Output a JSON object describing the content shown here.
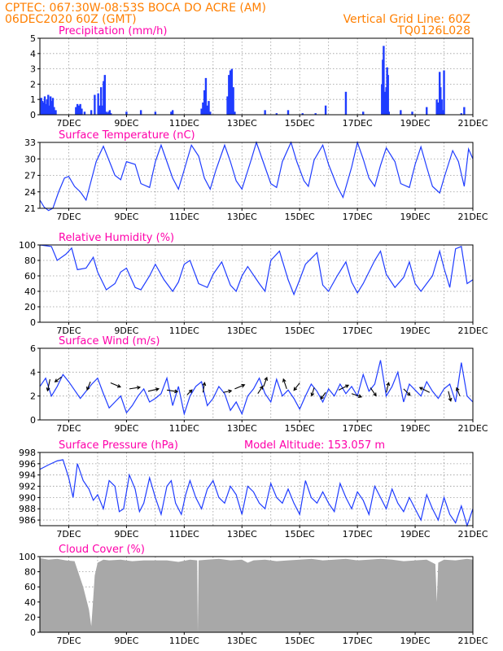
{
  "header": {
    "line1": "CPTEC:   067:30W-08:53S   BOCA DO ACRE (AM)",
    "line2": "06DEC2020 60Z (GMT)",
    "grid_note": "Vertical Grid Line: 60Z",
    "code": "TQ0126L028"
  },
  "colors": {
    "series": "#1f3cff",
    "title": "#ff00aa",
    "header": "#ff7f00",
    "cloud": "#a8a8a8"
  },
  "x_axis": {
    "start_day": 6,
    "end_day": 21,
    "tick_labels": [
      "7DEC",
      "9DEC",
      "11DEC",
      "13DEC",
      "15DEC",
      "17DEC",
      "19DEC",
      "21DEC"
    ],
    "tick_days": [
      7,
      9,
      11,
      13,
      15,
      17,
      19,
      21
    ],
    "grid": true
  },
  "chart_data": [
    {
      "type": "bar",
      "title": "Precipitation (mm/h)",
      "ylim": [
        0,
        5
      ],
      "yticks": [
        0,
        1,
        2,
        3,
        4,
        5
      ],
      "x": [
        6.05,
        6.09,
        6.13,
        6.17,
        6.21,
        6.25,
        6.29,
        6.33,
        6.37,
        6.41,
        6.45,
        6.49,
        6.55,
        7.25,
        7.3,
        7.35,
        7.4,
        7.45,
        7.55,
        7.78,
        7.9,
        8.02,
        8.08,
        8.12,
        8.17,
        8.21,
        8.25,
        8.3,
        8.35,
        8.38,
        8.42,
        8.46,
        9.0,
        9.5,
        10.0,
        10.55,
        10.6,
        11.6,
        11.65,
        11.7,
        11.75,
        11.8,
        11.85,
        11.9,
        12.5,
        12.55,
        12.6,
        12.65,
        12.7,
        12.75,
        13.8,
        14.2,
        14.6,
        15.1,
        15.55,
        15.9,
        16.6,
        17.2,
        17.85,
        17.88,
        17.91,
        17.94,
        17.97,
        18.0,
        18.03,
        18.06,
        18.09,
        18.5,
        18.9,
        19.4,
        19.75,
        19.8,
        19.85,
        19.88,
        19.92,
        19.96,
        20.0,
        20.6,
        20.7
      ],
      "values": [
        1.1,
        0.9,
        0.8,
        1.2,
        0.7,
        1.0,
        1.3,
        0.6,
        1.2,
        0.9,
        1.1,
        0.5,
        0.3,
        0.5,
        0.7,
        0.6,
        0.7,
        0.4,
        0.2,
        0.3,
        1.3,
        1.4,
        0.6,
        1.8,
        0.6,
        2.2,
        2.6,
        0.2,
        0.1,
        0.2,
        0.3,
        0.1,
        0.2,
        0.3,
        0.2,
        0.2,
        0.3,
        0.4,
        0.8,
        1.6,
        2.4,
        0.6,
        0.9,
        0.2,
        1.2,
        2.6,
        2.9,
        3.0,
        1.8,
        0.2,
        0.3,
        0.1,
        0.3,
        0.1,
        0.1,
        0.6,
        1.5,
        0.2,
        2.0,
        3.6,
        4.5,
        1.5,
        0.6,
        1.8,
        3.1,
        2.6,
        0.2,
        0.3,
        0.2,
        0.5,
        1.0,
        0.8,
        2.8,
        1.8,
        1.0,
        0.3,
        2.9,
        0.1,
        0.5
      ]
    },
    {
      "type": "line",
      "title": "Surface Temperature (nC)",
      "ylim": [
        21,
        33
      ],
      "yticks": [
        21,
        24,
        27,
        30,
        33
      ],
      "x": [
        6.0,
        6.15,
        6.3,
        6.45,
        6.65,
        6.85,
        7.0,
        7.2,
        7.4,
        7.6,
        7.8,
        7.95,
        8.2,
        8.45,
        8.6,
        8.8,
        9.0,
        9.3,
        9.5,
        9.8,
        10.0,
        10.2,
        10.4,
        10.6,
        10.8,
        11.0,
        11.25,
        11.5,
        11.7,
        11.9,
        12.1,
        12.4,
        12.6,
        12.8,
        13.0,
        13.3,
        13.5,
        13.8,
        14.0,
        14.2,
        14.4,
        14.7,
        14.9,
        15.15,
        15.3,
        15.5,
        15.8,
        16.0,
        16.3,
        16.5,
        16.8,
        17.0,
        17.2,
        17.4,
        17.6,
        17.8,
        18.0,
        18.3,
        18.5,
        18.8,
        19.0,
        19.2,
        19.4,
        19.6,
        19.85,
        20.0,
        20.3,
        20.5,
        20.7,
        20.85,
        21.0
      ],
      "values": [
        22.5,
        21.2,
        20.6,
        21.0,
        24.0,
        26.5,
        26.8,
        25.0,
        24.0,
        22.5,
        26.5,
        29.5,
        32.3,
        29.0,
        27.0,
        26.2,
        29.5,
        29.0,
        25.5,
        24.8,
        29.5,
        32.5,
        29.5,
        26.5,
        24.5,
        28.0,
        32.5,
        30.5,
        26.5,
        24.5,
        28.0,
        32.5,
        29.5,
        26.0,
        24.5,
        29.5,
        33.0,
        28.5,
        25.5,
        24.8,
        29.5,
        33.0,
        29.5,
        26.0,
        25.0,
        29.8,
        32.5,
        29.0,
        25.0,
        23.0,
        28.5,
        33.0,
        30.0,
        26.5,
        25.0,
        28.8,
        32.0,
        29.5,
        25.5,
        24.8,
        29.0,
        32.2,
        28.5,
        25.0,
        23.8,
        26.5,
        31.5,
        29.5,
        25.0,
        31.8,
        30.0
      ]
    },
    {
      "type": "line",
      "title": "Relative Humidity (%)",
      "ylim": [
        0,
        100
      ],
      "yticks": [
        0,
        20,
        40,
        60,
        80,
        100
      ],
      "x": [
        6.0,
        6.4,
        6.6,
        6.9,
        7.1,
        7.3,
        7.6,
        7.85,
        8.0,
        8.3,
        8.6,
        8.8,
        9.0,
        9.3,
        9.5,
        9.8,
        10.0,
        10.3,
        10.6,
        10.8,
        11.0,
        11.2,
        11.5,
        11.8,
        12.0,
        12.3,
        12.6,
        12.8,
        13.0,
        13.2,
        13.6,
        13.8,
        14.0,
        14.3,
        14.6,
        14.8,
        15.0,
        15.2,
        15.6,
        15.8,
        16.0,
        16.3,
        16.6,
        16.8,
        17.0,
        17.2,
        17.6,
        17.8,
        18.0,
        18.3,
        18.6,
        18.8,
        19.0,
        19.2,
        19.6,
        19.85,
        20.0,
        20.2,
        20.4,
        20.6,
        20.8,
        21.0
      ],
      "values": [
        100,
        98,
        80,
        88,
        96,
        68,
        70,
        84,
        65,
        42,
        50,
        65,
        70,
        45,
        42,
        60,
        75,
        55,
        40,
        52,
        75,
        80,
        50,
        45,
        62,
        78,
        48,
        40,
        60,
        72,
        50,
        40,
        80,
        92,
        55,
        36,
        55,
        75,
        90,
        48,
        40,
        60,
        78,
        52,
        38,
        50,
        80,
        92,
        62,
        45,
        58,
        78,
        50,
        40,
        60,
        92,
        70,
        45,
        95,
        98,
        50,
        55
      ]
    },
    {
      "type": "line",
      "title": "Surface Wind (m/s)",
      "ylim": [
        0,
        6
      ],
      "yticks": [
        0,
        2,
        4,
        6
      ],
      "x": [
        6.0,
        6.2,
        6.4,
        6.6,
        6.8,
        7.0,
        7.2,
        7.4,
        7.6,
        7.8,
        8.0,
        8.2,
        8.4,
        8.6,
        8.8,
        9.0,
        9.2,
        9.4,
        9.6,
        9.8,
        10.0,
        10.2,
        10.4,
        10.6,
        10.8,
        11.0,
        11.2,
        11.4,
        11.6,
        11.8,
        12.0,
        12.2,
        12.4,
        12.6,
        12.8,
        13.0,
        13.2,
        13.4,
        13.6,
        13.8,
        14.0,
        14.2,
        14.4,
        14.6,
        14.8,
        15.0,
        15.2,
        15.4,
        15.6,
        15.8,
        16.0,
        16.2,
        16.4,
        16.6,
        16.8,
        17.0,
        17.2,
        17.4,
        17.6,
        17.8,
        18.0,
        18.2,
        18.4,
        18.6,
        18.8,
        19.0,
        19.2,
        19.4,
        19.6,
        19.8,
        20.0,
        20.2,
        20.4,
        20.6,
        20.8,
        21.0
      ],
      "values": [
        2.8,
        3.5,
        2.0,
        2.8,
        3.8,
        3.2,
        2.5,
        1.8,
        2.4,
        3.0,
        3.5,
        2.2,
        1.0,
        1.5,
        2.0,
        0.6,
        1.2,
        2.0,
        2.6,
        1.5,
        1.8,
        2.2,
        3.5,
        1.2,
        2.8,
        0.5,
        2.0,
        2.8,
        3.2,
        1.2,
        1.8,
        2.8,
        2.2,
        0.8,
        1.5,
        0.5,
        2.0,
        2.6,
        3.5,
        2.2,
        1.5,
        3.4,
        2.0,
        2.5,
        1.8,
        0.9,
        2.0,
        3.0,
        2.4,
        1.5,
        2.6,
        2.0,
        3.0,
        2.2,
        2.8,
        2.0,
        3.8,
        2.4,
        3.0,
        5.0,
        2.0,
        2.8,
        4.0,
        1.5,
        3.0,
        2.5,
        2.0,
        3.2,
        2.4,
        1.8,
        2.6,
        3.0,
        1.5,
        4.8,
        2.0,
        1.5
      ],
      "direction_arrows": [
        {
          "x": 6.35,
          "y": 3.4,
          "dx": -3,
          "dy": 14
        },
        {
          "x": 6.75,
          "y": 3.6,
          "dx": -8,
          "dy": 6
        },
        {
          "x": 7.75,
          "y": 3.2,
          "dx": -4,
          "dy": 10
        },
        {
          "x": 8.45,
          "y": 3.1,
          "dx": 12,
          "dy": 5
        },
        {
          "x": 9.1,
          "y": 2.6,
          "dx": 13,
          "dy": -2
        },
        {
          "x": 9.75,
          "y": 2.4,
          "dx": 13,
          "dy": -3
        },
        {
          "x": 10.4,
          "y": 2.5,
          "dx": 13,
          "dy": 2
        },
        {
          "x": 11.1,
          "y": 2.1,
          "dx": 6,
          "dy": -6
        },
        {
          "x": 11.65,
          "y": 2.3,
          "dx": 2,
          "dy": -12
        },
        {
          "x": 12.35,
          "y": 2.3,
          "dx": 10,
          "dy": -2
        },
        {
          "x": 12.75,
          "y": 2.6,
          "dx": 12,
          "dy": -5
        },
        {
          "x": 13.55,
          "y": 2.2,
          "dx": 6,
          "dy": -9
        },
        {
          "x": 13.75,
          "y": 2.8,
          "dx": 4,
          "dy": -11
        },
        {
          "x": 14.55,
          "y": 2.6,
          "dx": -4,
          "dy": -12
        },
        {
          "x": 15.0,
          "y": 3.1,
          "dx": -7,
          "dy": 9
        },
        {
          "x": 15.5,
          "y": 2.7,
          "dx": -3,
          "dy": 10
        },
        {
          "x": 15.9,
          "y": 2.3,
          "dx": -6,
          "dy": 8
        },
        {
          "x": 16.35,
          "y": 2.5,
          "dx": 12,
          "dy": -6
        },
        {
          "x": 16.8,
          "y": 2.2,
          "dx": 12,
          "dy": 4
        },
        {
          "x": 17.45,
          "y": 2.7,
          "dx": 7,
          "dy": 10
        },
        {
          "x": 18.0,
          "y": 2.3,
          "dx": 3,
          "dy": -12
        },
        {
          "x": 18.6,
          "y": 2.6,
          "dx": 8,
          "dy": 8
        },
        {
          "x": 19.5,
          "y": 2.3,
          "dx": -12,
          "dy": -6
        },
        {
          "x": 20.15,
          "y": 2.4,
          "dx": 3,
          "dy": 12
        },
        {
          "x": 20.55,
          "y": 2.0,
          "dx": -4,
          "dy": -10
        }
      ]
    },
    {
      "type": "line",
      "title": "Surface Pressure (hPa)",
      "subtitle": "Model Altitude: 153.057 m",
      "ylim": [
        985,
        998
      ],
      "yticks": [
        986,
        988,
        990,
        992,
        994,
        996,
        998
      ],
      "x": [
        6.0,
        6.3,
        6.6,
        6.8,
        7.0,
        7.15,
        7.3,
        7.5,
        7.7,
        7.85,
        8.0,
        8.2,
        8.4,
        8.6,
        8.75,
        8.9,
        9.1,
        9.3,
        9.45,
        9.6,
        9.8,
        10.0,
        10.2,
        10.4,
        10.55,
        10.7,
        10.9,
        11.05,
        11.2,
        11.4,
        11.6,
        11.8,
        12.0,
        12.2,
        12.4,
        12.6,
        12.8,
        13.0,
        13.2,
        13.4,
        13.6,
        13.8,
        14.0,
        14.2,
        14.4,
        14.6,
        14.8,
        15.0,
        15.2,
        15.4,
        15.6,
        15.8,
        16.0,
        16.2,
        16.4,
        16.6,
        16.8,
        17.0,
        17.2,
        17.4,
        17.6,
        17.8,
        18.0,
        18.2,
        18.4,
        18.6,
        18.8,
        19.0,
        19.2,
        19.4,
        19.6,
        19.8,
        20.0,
        20.2,
        20.4,
        20.6,
        20.8,
        21.0
      ],
      "values": [
        995.0,
        995.8,
        996.5,
        996.7,
        993.5,
        990.0,
        996.0,
        993.0,
        991.5,
        989.5,
        990.5,
        988.0,
        993.0,
        992.0,
        987.5,
        988.0,
        994.0,
        991.5,
        987.5,
        989.0,
        993.5,
        990.0,
        987.0,
        992.0,
        993.0,
        989.0,
        987.0,
        990.5,
        993.0,
        990.0,
        988.0,
        991.5,
        993.0,
        990.0,
        989.0,
        992.0,
        990.5,
        987.0,
        992.0,
        991.0,
        989.0,
        988.0,
        992.5,
        990.0,
        989.0,
        991.5,
        989.0,
        987.0,
        993.0,
        990.0,
        989.0,
        991.0,
        989.0,
        987.5,
        992.5,
        990.0,
        988.0,
        991.0,
        989.5,
        987.0,
        992.0,
        990.0,
        988.0,
        991.5,
        989.0,
        987.5,
        990.0,
        988.0,
        986.0,
        990.5,
        988.0,
        986.0,
        990.0,
        987.0,
        985.5,
        988.5,
        985.0,
        988.0
      ]
    },
    {
      "type": "area",
      "title": "Cloud Cover (%)",
      "ylim": [
        0,
        100
      ],
      "yticks": [
        0,
        20,
        40,
        60,
        80,
        100
      ],
      "x": [
        6.0,
        6.3,
        6.6,
        6.9,
        7.2,
        7.5,
        7.7,
        7.78,
        7.84,
        7.9,
        8.0,
        8.2,
        8.4,
        8.8,
        9.2,
        9.6,
        10.0,
        10.4,
        10.8,
        11.2,
        11.45,
        11.47,
        11.5,
        11.8,
        12.2,
        12.6,
        13.0,
        13.2,
        13.4,
        13.8,
        14.2,
        14.6,
        15.0,
        15.4,
        15.8,
        16.2,
        16.6,
        17.0,
        17.4,
        17.8,
        18.2,
        18.6,
        19.0,
        19.4,
        19.7,
        19.75,
        19.8,
        20.0,
        20.4,
        20.8,
        21.0
      ],
      "values": [
        98,
        96,
        97,
        95,
        94,
        60,
        30,
        8,
        40,
        75,
        92,
        96,
        95,
        96,
        94,
        95,
        95,
        95,
        93,
        96,
        95,
        0,
        95,
        96,
        97,
        95,
        96,
        92,
        95,
        96,
        94,
        95,
        96,
        97,
        95,
        96,
        97,
        95,
        96,
        97,
        96,
        94,
        95,
        96,
        90,
        40,
        92,
        96,
        95,
        97,
        96
      ]
    }
  ]
}
